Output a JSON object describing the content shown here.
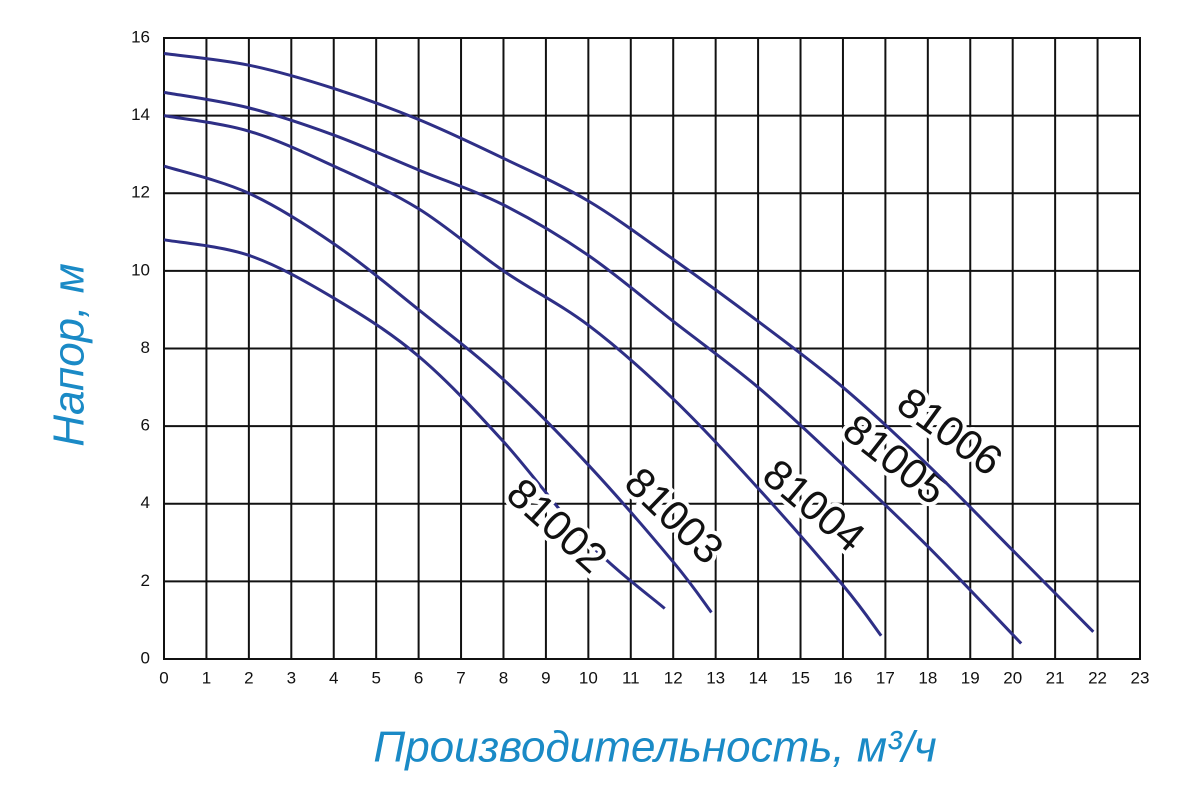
{
  "chart_data": {
    "type": "line",
    "xlabel": "Производительность, м³/ч",
    "ylabel": "Напор, м",
    "xlim": [
      0,
      23
    ],
    "xticks": [
      0,
      1,
      2,
      3,
      4,
      5,
      6,
      7,
      8,
      9,
      10,
      11,
      12,
      13,
      14,
      15,
      16,
      17,
      18,
      19,
      20,
      21,
      22,
      23
    ],
    "ylim": [
      0,
      16
    ],
    "yticks": [
      0,
      2,
      4,
      6,
      8,
      10,
      12,
      14,
      16
    ],
    "grid": true,
    "series": [
      {
        "name": "81002",
        "color": "#2e2f86",
        "x": [
          0,
          2,
          4,
          6,
          8,
          10,
          11.8
        ],
        "values": [
          10.8,
          10.4,
          9.3,
          7.8,
          5.6,
          3.0,
          1.3
        ]
      },
      {
        "name": "81003",
        "color": "#2e2f86",
        "x": [
          0,
          2,
          4,
          6,
          8,
          10,
          12,
          12.9
        ],
        "values": [
          12.7,
          12.0,
          10.7,
          9.0,
          7.2,
          5.0,
          2.5,
          1.2
        ]
      },
      {
        "name": "81004",
        "color": "#2e2f86",
        "x": [
          0,
          2,
          4,
          6,
          8,
          10,
          12,
          14,
          16,
          16.9
        ],
        "values": [
          14.0,
          13.6,
          12.7,
          11.6,
          10.0,
          8.6,
          6.7,
          4.4,
          1.9,
          0.6
        ]
      },
      {
        "name": "81005",
        "color": "#2e2f86",
        "x": [
          0,
          2,
          4,
          6,
          8,
          10,
          12,
          14,
          16,
          18,
          20.2
        ],
        "values": [
          14.6,
          14.2,
          13.5,
          12.6,
          11.7,
          10.4,
          8.7,
          7.0,
          5.0,
          2.9,
          0.4
        ]
      },
      {
        "name": "81006",
        "color": "#2e2f86",
        "x": [
          0,
          2,
          4,
          6,
          8,
          10,
          12,
          14,
          16,
          18,
          20,
          21.9
        ],
        "values": [
          15.6,
          15.3,
          14.7,
          13.9,
          12.9,
          11.8,
          10.3,
          8.7,
          7.0,
          5.0,
          2.8,
          0.7
        ]
      }
    ]
  }
}
